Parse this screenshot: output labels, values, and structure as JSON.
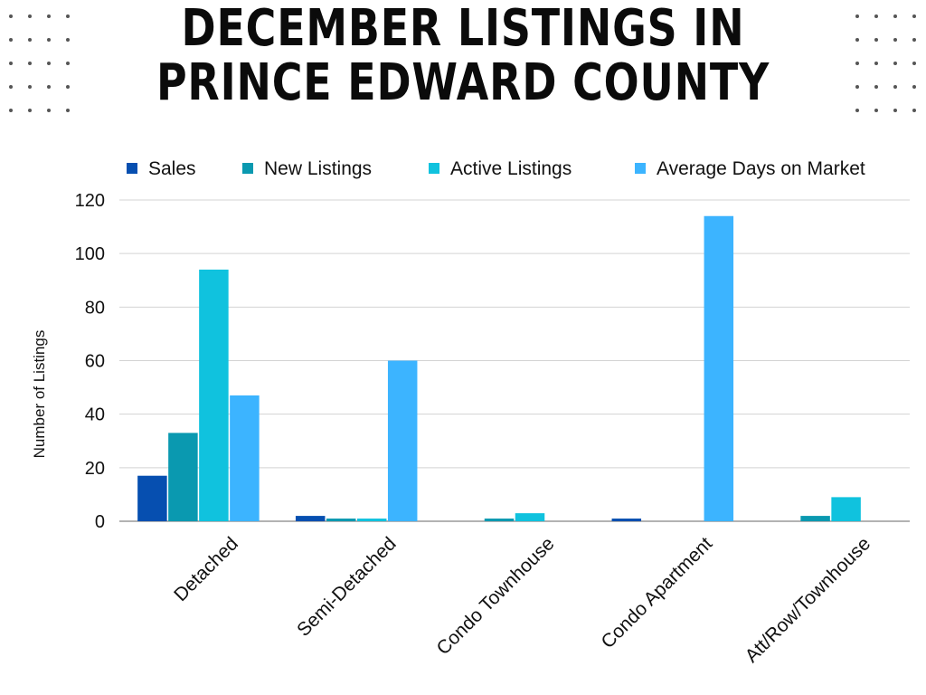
{
  "title_lines": [
    "DECEMBER LISTINGS IN",
    "PRINCE EDWARD COUNTY"
  ],
  "chart_data": {
    "type": "bar",
    "title": "DECEMBER LISTINGS IN PRINCE EDWARD COUNTY",
    "categories": [
      "Detached",
      "Semi-Detached",
      "Condo Townhouse",
      "Condo Apartment",
      "Att/Row/Townhouse"
    ],
    "series": [
      {
        "name": "Sales",
        "color": "#064fb0",
        "values": [
          17,
          2,
          0,
          1,
          0
        ]
      },
      {
        "name": "New Listings",
        "color": "#0a99b0",
        "values": [
          33,
          1,
          1,
          0,
          2
        ]
      },
      {
        "name": "Active Listings",
        "color": "#10c2de",
        "values": [
          94,
          1,
          3,
          0,
          9
        ]
      },
      {
        "name": "Average Days on Market",
        "color": "#3cb4ff",
        "values": [
          47,
          60,
          0,
          114,
          0
        ]
      }
    ],
    "xlabel": "",
    "ylabel": "Number of Listings",
    "ylim": [
      0,
      120
    ],
    "yticks": [
      0,
      20,
      40,
      60,
      80,
      100,
      120
    ],
    "grid": true,
    "legend_position": "top"
  }
}
